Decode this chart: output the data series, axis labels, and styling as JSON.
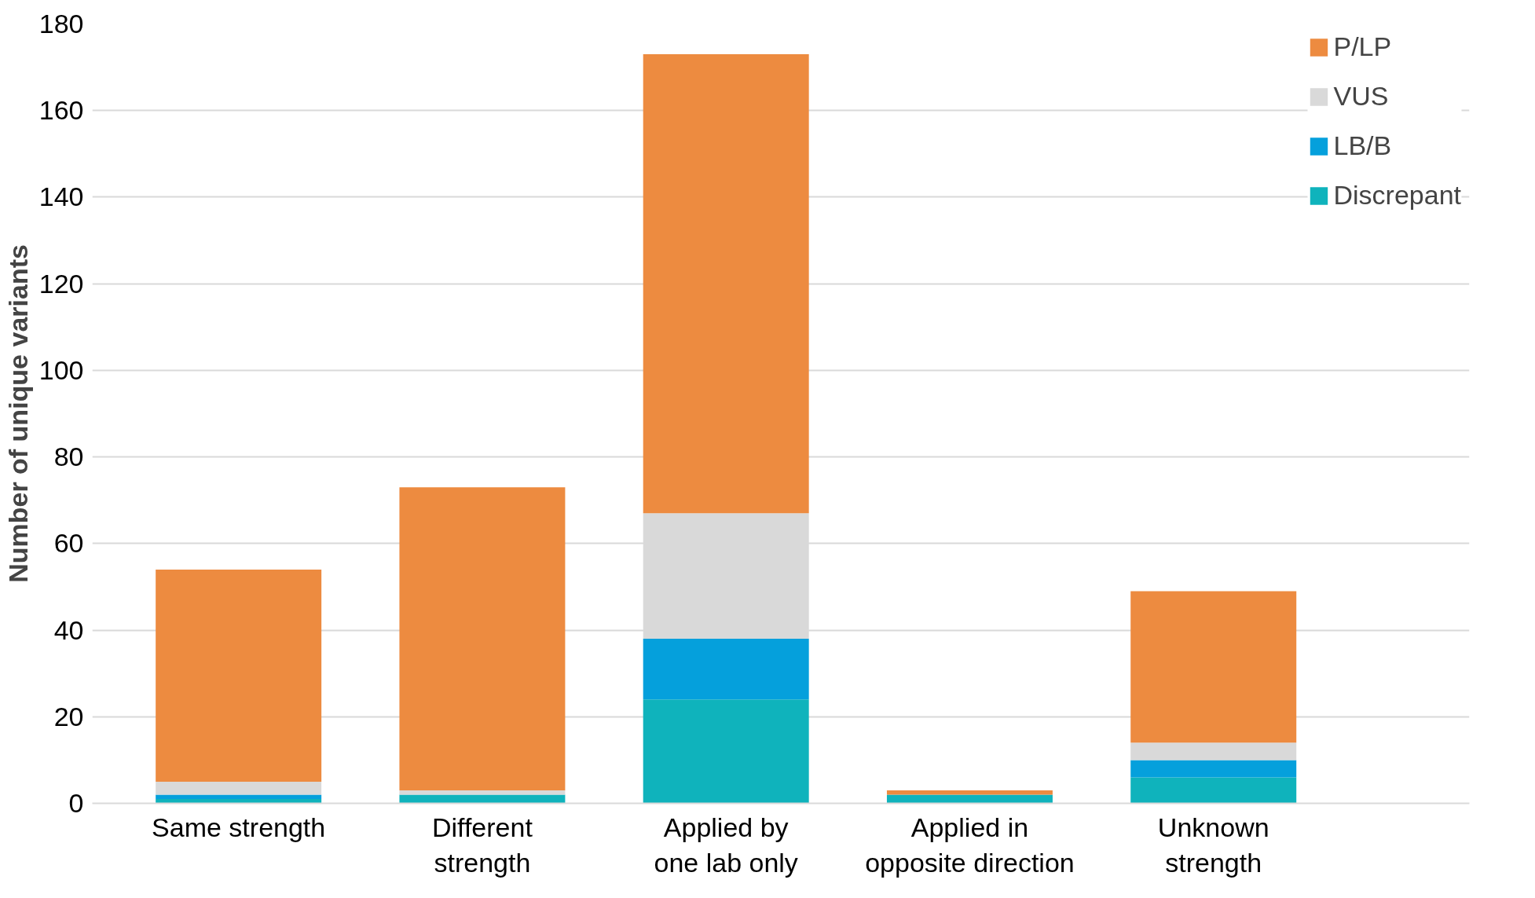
{
  "chart_data": {
    "type": "bar",
    "stacked": true,
    "ylabel": "Number of unique variants",
    "categories": [
      "Same strength",
      "Different strength",
      "Applied by one lab only",
      "Applied in opposite direction",
      "Unknown strength"
    ],
    "series": [
      {
        "name": "Discrepant",
        "color": "#0fb3bc",
        "values": [
          1,
          2,
          24,
          2,
          6
        ]
      },
      {
        "name": "LB/B",
        "color": "#05a0dc",
        "values": [
          1,
          0,
          14,
          0,
          4
        ]
      },
      {
        "name": "VUS",
        "color": "#d9d9d9",
        "values": [
          3,
          1,
          29,
          0,
          4
        ]
      },
      {
        "name": "P/LP",
        "color": "#ed8b40",
        "values": [
          49,
          70,
          106,
          1,
          35
        ]
      }
    ],
    "ylim": [
      0,
      180
    ],
    "yticks": [
      0,
      20,
      40,
      60,
      80,
      100,
      120,
      140,
      160,
      180
    ],
    "grid": "y",
    "legend": "top right"
  }
}
